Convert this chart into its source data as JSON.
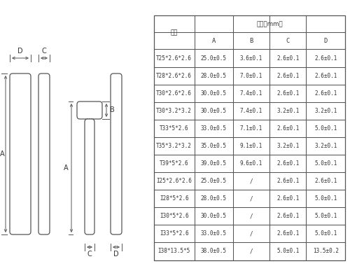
{
  "background_color": "#ffffff",
  "table_header1": "规格",
  "table_header2": "尺寸（mm）",
  "col_headers": [
    "A",
    "B",
    "C",
    "D"
  ],
  "rows": [
    [
      "T25*2.6*2.6",
      "25.0±0.5",
      "3.6±0.1",
      "2.6±0.1",
      "2.6±0.1"
    ],
    [
      "T28*2.6*2.6",
      "28.0±0.5",
      "7.0±0.1",
      "2.6±0.1",
      "2.6±0.1"
    ],
    [
      "T30*2.6*2.6",
      "30.0±0.5",
      "7.4±0.1",
      "2.6±0.1",
      "2.6±0.1"
    ],
    [
      "T30*3.2*3.2",
      "30.0±0.5",
      "7.4±0.1",
      "3.2±0.1",
      "3.2±0.1"
    ],
    [
      "T33*5*2.6",
      "33.0±0.5",
      "7.1±0.1",
      "2.6±0.1",
      "5.0±0.1"
    ],
    [
      "T35*3.2*3.2",
      "35.0±0.5",
      "9.1±0.1",
      "3.2±0.1",
      "3.2±0.1"
    ],
    [
      "T39*5*2.6",
      "39.0±0.5",
      "9.6±0.1",
      "2.6±0.1",
      "5.0±0.1"
    ],
    [
      "I25*2.6*2.6",
      "25.0±0.5",
      "/",
      "2.6±0.1",
      "2.6±0.1"
    ],
    [
      "I28*5*2.6",
      "28.0±0.5",
      "/",
      "2.6±0.1",
      "5.0±0.1"
    ],
    [
      "I30*5*2.6",
      "30.0±0.5",
      "/",
      "2.6±0.1",
      "5.0±0.1"
    ],
    [
      "I33*5*2.6",
      "33.0±0.5",
      "/",
      "2.6±0.1",
      "5.0±0.1"
    ],
    [
      "I38*13.5*5",
      "38.0±0.5",
      "/",
      "5.0±0.1",
      "13.5±0.2"
    ]
  ],
  "diagram_color": "#555555",
  "font_size_table": 5.8,
  "font_size_label": 7.0
}
